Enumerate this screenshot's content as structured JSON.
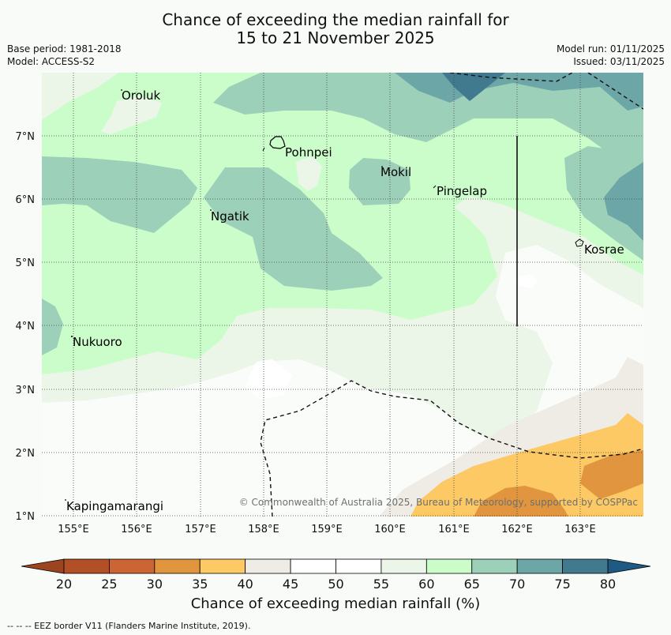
{
  "title": {
    "line1": "Chance of exceeding the median rainfall for",
    "line2": "15 to 21 November 2025"
  },
  "meta": {
    "base_period": "Base period: 1981-2018",
    "model": "Model: ACCESS-S2",
    "model_run": "Model run: 01/11/2025",
    "issued": "Issued: 03/11/2025"
  },
  "map": {
    "lon_labels": [
      "155°E",
      "156°E",
      "157°E",
      "158°E",
      "159°E",
      "160°E",
      "161°E",
      "162°E",
      "163°E"
    ],
    "lat_labels": [
      "7°N",
      "6°N",
      "5°N",
      "4°N",
      "3°N",
      "2°N",
      "1°N"
    ],
    "places": [
      {
        "name": "Oroluk"
      },
      {
        "name": "Pohnpei"
      },
      {
        "name": "Mokil"
      },
      {
        "name": "Pingelap"
      },
      {
        "name": "Ngatik"
      },
      {
        "name": "Kosrae"
      },
      {
        "name": "Nukuoro"
      },
      {
        "name": "Kapingamarangi"
      }
    ],
    "copyright": "© Commonwealth of Australia 2025, Bureau of Meteorology, supported by COSPPac"
  },
  "colorbar": {
    "ticks": [
      "20",
      "25",
      "30",
      "35",
      "40",
      "45",
      "50",
      "55",
      "60",
      "65",
      "70",
      "75",
      "80"
    ],
    "colors": [
      "#b34f27",
      "#cc6434",
      "#e0953e",
      "#fcc965",
      "#efebe5",
      "#ffffff",
      "#ffffff",
      "#ebf6e8",
      "#cbfdcb",
      "#9dd0b9",
      "#6ca6a6",
      "#41798f"
    ],
    "under_color": "#9c4420",
    "over_color": "#1f5a85",
    "label": "Chance of exceeding median rainfall (%)"
  },
  "footnote": "--  --  -- EEZ border V11 (Flanders Marine Institute, 2019)."
}
